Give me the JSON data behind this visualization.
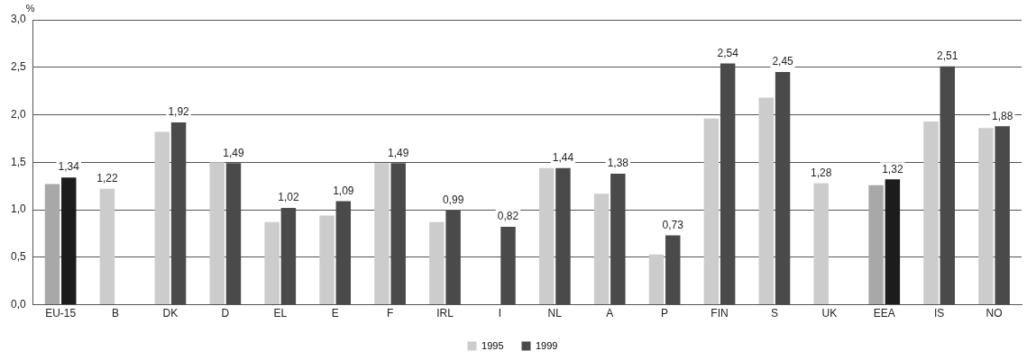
{
  "chart_data": {
    "type": "bar",
    "ylabel": "%",
    "categories": [
      "EU-15",
      "B",
      "DK",
      "D",
      "EL",
      "E",
      "F",
      "IRL",
      "I",
      "NL",
      "A",
      "P",
      "FIN",
      "S",
      "UK",
      "EEA",
      "IS",
      "NO"
    ],
    "series": [
      {
        "name": "1995",
        "color": "#cccccc",
        "colors": [
          "#a8a8a8",
          "#cccccc",
          "#cccccc",
          "#cccccc",
          "#cccccc",
          "#cccccc",
          "#cccccc",
          "#cccccc",
          "#cccccc",
          "#cccccc",
          "#cccccc",
          "#cccccc",
          "#cccccc",
          "#cccccc",
          "#cccccc",
          "#a8a8a8",
          "#cccccc",
          "#cccccc"
        ],
        "values": [
          1.27,
          1.22,
          1.82,
          1.5,
          0.87,
          0.94,
          1.49,
          0.87,
          null,
          1.44,
          1.17,
          0.53,
          1.96,
          2.18,
          1.28,
          1.26,
          1.93,
          1.86
        ],
        "value_labels": [
          null,
          "1,22",
          null,
          null,
          null,
          null,
          null,
          null,
          null,
          null,
          null,
          null,
          null,
          null,
          "1,28",
          null,
          null,
          null
        ]
      },
      {
        "name": "1999",
        "color": "#4a4a4a",
        "colors": [
          "#1c1c1c",
          "#4a4a4a",
          "#4a4a4a",
          "#4a4a4a",
          "#4a4a4a",
          "#4a4a4a",
          "#4a4a4a",
          "#4a4a4a",
          "#4a4a4a",
          "#4a4a4a",
          "#4a4a4a",
          "#4a4a4a",
          "#4a4a4a",
          "#4a4a4a",
          "#4a4a4a",
          "#1c1c1c",
          "#4a4a4a",
          "#4a4a4a"
        ],
        "values": [
          1.34,
          null,
          1.92,
          1.49,
          1.02,
          1.09,
          1.49,
          0.99,
          0.82,
          1.44,
          1.38,
          0.73,
          2.54,
          2.45,
          null,
          1.32,
          2.51,
          1.88
        ],
        "value_labels": [
          "1,34",
          null,
          "1,92",
          "1,49",
          "1,02",
          "1,09",
          "1,49",
          "0,99",
          "0,82",
          "1,44",
          "1,38",
          "0,73",
          "2,54",
          "2,45",
          null,
          "1,32",
          "2,51",
          "1,88"
        ]
      }
    ],
    "ylim": [
      0,
      3
    ],
    "yticks": [
      {
        "value": 0,
        "label": "0,0"
      },
      {
        "value": 0.5,
        "label": "0,5"
      },
      {
        "value": 1,
        "label": "1,0"
      },
      {
        "value": 1.5,
        "label": "1,5"
      },
      {
        "value": 2,
        "label": "2,0"
      },
      {
        "value": 2.5,
        "label": "2,5"
      },
      {
        "value": 3,
        "label": "3,0"
      }
    ],
    "grid": "y",
    "legend": "bottom"
  }
}
